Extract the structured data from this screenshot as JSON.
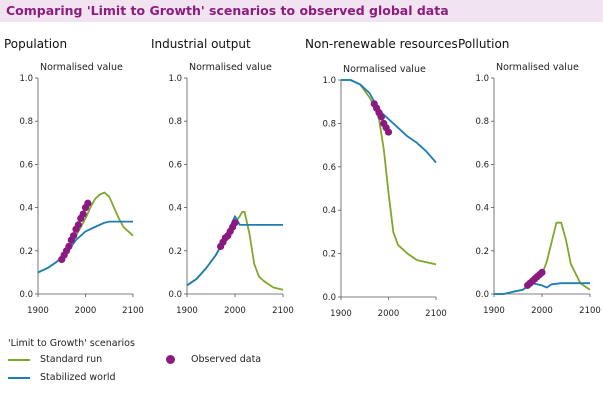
{
  "title": "Comparing 'Limit to Growth' scenarios to observed global data",
  "colors": {
    "title_bg": "#f1e4f0",
    "title_text": "#8c1c7e",
    "standard_run": "#7fa82a",
    "stabilized_world": "#1d7db5",
    "observed": "#8a1a80"
  },
  "legend": {
    "heading": "'Limit to Growth' scenarios",
    "standard_run": "Standard run",
    "stabilized_world": "Stabilized world",
    "observed": "Observed data"
  },
  "chart_data": [
    {
      "type": "line",
      "title": "Population",
      "ylabel": "Normalised value",
      "xlim": [
        1900,
        2100
      ],
      "ylim": [
        0,
        1
      ],
      "xticks": [
        "1900",
        "2000",
        "2100"
      ],
      "yticks": [
        "0.0",
        "0.2",
        "0.4",
        "0.6",
        "0.8",
        "1.0"
      ],
      "series": [
        {
          "name": "Standard run",
          "x": [
            1900,
            1920,
            1940,
            1960,
            1980,
            2000,
            2010,
            2020,
            2030,
            2040,
            2050,
            2060,
            2070,
            2080,
            2090,
            2100
          ],
          "y": [
            0.1,
            0.12,
            0.15,
            0.19,
            0.27,
            0.35,
            0.4,
            0.44,
            0.46,
            0.47,
            0.45,
            0.4,
            0.35,
            0.31,
            0.29,
            0.27
          ]
        },
        {
          "name": "Stabilized world",
          "x": [
            1900,
            1920,
            1940,
            1960,
            1980,
            2000,
            2020,
            2040,
            2050,
            2060,
            2080,
            2100
          ],
          "y": [
            0.1,
            0.12,
            0.15,
            0.19,
            0.25,
            0.29,
            0.31,
            0.33,
            0.335,
            0.335,
            0.335,
            0.335
          ]
        },
        {
          "name": "Observed data",
          "x": [
            1950,
            1955,
            1960,
            1965,
            1970,
            1975,
            1980,
            1985,
            1990,
            1995,
            2000,
            2005
          ],
          "y": [
            0.16,
            0.18,
            0.2,
            0.22,
            0.25,
            0.27,
            0.3,
            0.32,
            0.35,
            0.37,
            0.4,
            0.42
          ]
        }
      ]
    },
    {
      "type": "line",
      "title": "Industrial output",
      "ylabel": "Normalised value",
      "xlim": [
        1900,
        2100
      ],
      "ylim": [
        0,
        1
      ],
      "xticks": [
        "1900",
        "2000",
        "2100"
      ],
      "yticks": [
        "0.0",
        "0.2",
        "0.4",
        "0.6",
        "0.8",
        "1.0"
      ],
      "series": [
        {
          "name": "Standard run",
          "x": [
            1900,
            1920,
            1940,
            1960,
            1980,
            2000,
            2010,
            2015,
            2020,
            2030,
            2040,
            2050,
            2060,
            2080,
            2100
          ],
          "y": [
            0.04,
            0.07,
            0.12,
            0.18,
            0.26,
            0.33,
            0.36,
            0.38,
            0.38,
            0.28,
            0.14,
            0.08,
            0.06,
            0.03,
            0.02
          ]
        },
        {
          "name": "Stabilized world",
          "x": [
            1900,
            1920,
            1940,
            1960,
            1980,
            2000,
            2010,
            2020,
            2040,
            2060,
            2080,
            2100
          ],
          "y": [
            0.04,
            0.07,
            0.12,
            0.18,
            0.26,
            0.36,
            0.32,
            0.32,
            0.32,
            0.32,
            0.32,
            0.32
          ]
        },
        {
          "name": "Observed data",
          "x": [
            1970,
            1975,
            1980,
            1985,
            1990,
            1995,
            2000
          ],
          "y": [
            0.22,
            0.24,
            0.26,
            0.27,
            0.29,
            0.31,
            0.33
          ]
        }
      ]
    },
    {
      "type": "line",
      "title": "Non-renewable resources",
      "ylabel": "Normalised value",
      "xlim": [
        1900,
        2100
      ],
      "ylim": [
        0,
        1
      ],
      "xticks": [
        "1900",
        "2000",
        "2100"
      ],
      "yticks": [
        "0.0",
        "0.2",
        "0.4",
        "0.6",
        "0.8",
        "1.0"
      ],
      "series": [
        {
          "name": "Standard run",
          "x": [
            1900,
            1920,
            1940,
            1960,
            1970,
            1980,
            1990,
            2000,
            2010,
            2020,
            2040,
            2060,
            2080,
            2100
          ],
          "y": [
            1.0,
            1.0,
            0.98,
            0.92,
            0.88,
            0.82,
            0.68,
            0.48,
            0.3,
            0.24,
            0.2,
            0.17,
            0.16,
            0.15
          ]
        },
        {
          "name": "Stabilized world",
          "x": [
            1900,
            1920,
            1940,
            1960,
            1970,
            1980,
            2000,
            2020,
            2040,
            2060,
            2080,
            2100
          ],
          "y": [
            1.0,
            1.0,
            0.98,
            0.94,
            0.9,
            0.86,
            0.82,
            0.78,
            0.74,
            0.71,
            0.67,
            0.62
          ]
        },
        {
          "name": "Observed data",
          "x": [
            1970,
            1975,
            1980,
            1985,
            1990,
            1995,
            2000
          ],
          "y": [
            0.89,
            0.87,
            0.85,
            0.83,
            0.8,
            0.78,
            0.76
          ]
        }
      ]
    },
    {
      "type": "line",
      "title": "Pollution",
      "ylabel": "Normalised value",
      "xlim": [
        1900,
        2100
      ],
      "ylim": [
        0,
        1
      ],
      "xticks": [
        "1900",
        "2000",
        "2100"
      ],
      "yticks": [
        "0.0",
        "0.2",
        "0.4",
        "0.6",
        "0.8",
        "1.0"
      ],
      "series": [
        {
          "name": "Standard run",
          "x": [
            1900,
            1920,
            1940,
            1960,
            1980,
            2000,
            2010,
            2020,
            2030,
            2040,
            2050,
            2060,
            2080,
            2100
          ],
          "y": [
            0.0,
            0.0,
            0.01,
            0.02,
            0.05,
            0.09,
            0.15,
            0.24,
            0.33,
            0.33,
            0.25,
            0.14,
            0.05,
            0.02
          ]
        },
        {
          "name": "Stabilized world",
          "x": [
            1900,
            1920,
            1940,
            1960,
            1980,
            2000,
            2010,
            2020,
            2040,
            2060,
            2080,
            2100
          ],
          "y": [
            0.0,
            0.0,
            0.01,
            0.02,
            0.05,
            0.04,
            0.03,
            0.045,
            0.05,
            0.05,
            0.05,
            0.05
          ]
        },
        {
          "name": "Observed data",
          "x": [
            1970,
            1975,
            1980,
            1985,
            1990,
            1995,
            2000
          ],
          "y": [
            0.04,
            0.05,
            0.06,
            0.07,
            0.08,
            0.09,
            0.1
          ]
        }
      ]
    }
  ]
}
